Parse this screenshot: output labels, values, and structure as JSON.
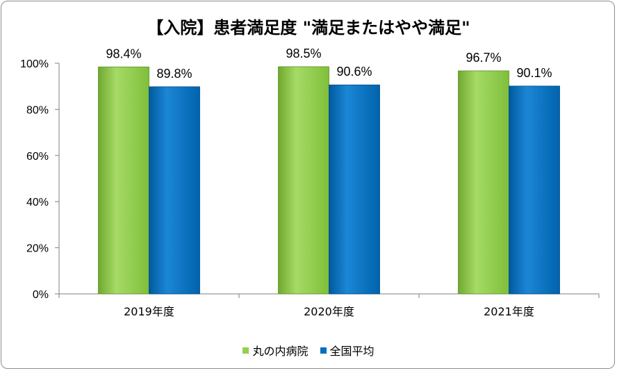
{
  "chart_data": {
    "type": "bar",
    "title": "【入院】患者満足度 \"満足またはやや満足\"",
    "categories": [
      "2019年度",
      "2020年度",
      "2021年度"
    ],
    "series": [
      {
        "name": "丸の内病院",
        "values": [
          98.4,
          98.5,
          96.7
        ],
        "labels": [
          "98.4%",
          "98.5%",
          "96.7%"
        ],
        "color": "#92d050"
      },
      {
        "name": "全国平均",
        "values": [
          89.8,
          90.6,
          90.1
        ],
        "labels": [
          "89.8%",
          "90.6%",
          "90.1%"
        ],
        "color": "#0070c0"
      }
    ],
    "ylim": [
      0,
      100
    ],
    "yticks": [
      "0%",
      "20%",
      "40%",
      "60%",
      "80%",
      "100%"
    ],
    "grid": false,
    "legend_position": "bottom"
  }
}
